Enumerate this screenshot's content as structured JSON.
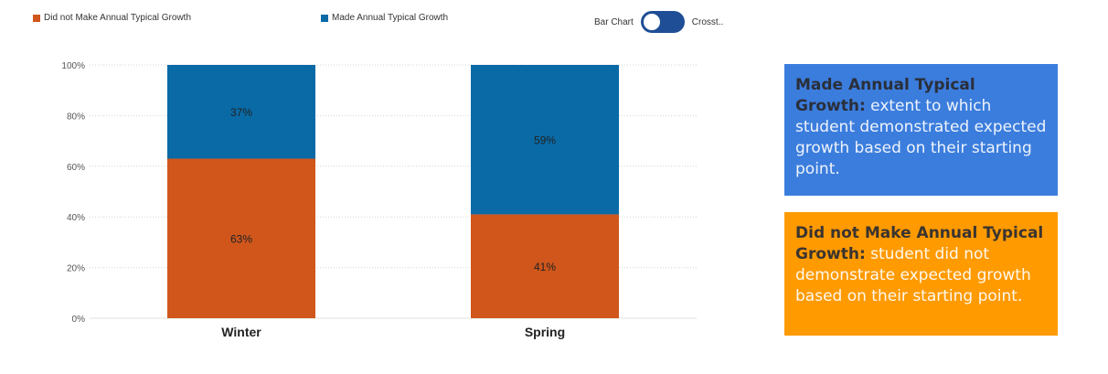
{
  "legend": [
    {
      "label": "Did not Make Annual Typical Growth",
      "color": "#d0561c"
    },
    {
      "label": "Made Annual Typical Growth",
      "color": "#096aa6"
    }
  ],
  "toggle": {
    "left_label": "Bar Chart",
    "right_label": "Crosst.."
  },
  "chart_data": {
    "type": "bar",
    "stacked": true,
    "categories": [
      "Winter",
      "Spring"
    ],
    "series": [
      {
        "name": "Did not Make Annual Typical Growth",
        "values": [
          63,
          41
        ],
        "labels": [
          "63%",
          "41%"
        ],
        "color": "#d0561c"
      },
      {
        "name": "Made Annual Typical Growth",
        "values": [
          37,
          59
        ],
        "labels": [
          "37%",
          "59%"
        ],
        "color": "#096aa6"
      }
    ],
    "ylim": [
      0,
      100
    ],
    "yticks": [
      "0%",
      "20%",
      "40%",
      "60%",
      "80%",
      "100%"
    ],
    "grid": true
  },
  "info": {
    "made": {
      "title": "Made Annual Typical Growth:",
      "text": " extent to which student demonstrated expected growth based on their starting point."
    },
    "not_made": {
      "title": "Did not Make Annual Typical  Growth:",
      "text": " student did not demonstrate expected growth based on their starting point."
    }
  }
}
